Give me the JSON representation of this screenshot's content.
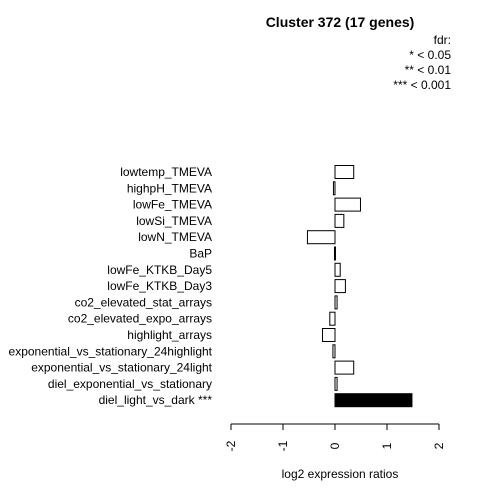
{
  "chart_data": {
    "type": "bar",
    "orientation": "horizontal",
    "title": "Cluster 372 (17 genes)",
    "xlabel": "log2 expression ratios",
    "ylabel": "",
    "xlim": [
      -2,
      2
    ],
    "ticks": [
      "-2",
      "-1",
      "0",
      "1",
      "2"
    ],
    "tick_values": [
      -2,
      -1,
      0,
      1,
      2
    ],
    "legend": {
      "title": "fdr:",
      "entries": [
        "* < 0.05",
        "** < 0.01",
        "*** < 0.001"
      ]
    },
    "categories": [
      "lowtemp_TMEVA",
      "highpH_TMEVA",
      "lowFe_TMEVA",
      "lowSi_TMEVA",
      "lowN_TMEVA",
      "BaP",
      "lowFe_KTKB_Day5",
      "lowFe_KTKB_Day3",
      "co2_elevated_stat_arrays",
      "co2_elevated_expo_arrays",
      "highlight_arrays",
      "exponential_vs_stationary_24highlight",
      "exponential_vs_stationary_24light",
      "diel_exponential_vs_stationary",
      "diel_light_vs_dark ***"
    ],
    "values": [
      0.36,
      -0.03,
      0.49,
      0.17,
      -0.53,
      -0.01,
      0.1,
      0.2,
      0.04,
      -0.1,
      -0.24,
      -0.04,
      0.36,
      0.04,
      1.48
    ],
    "highlight": [
      false,
      false,
      false,
      false,
      false,
      false,
      false,
      false,
      false,
      false,
      false,
      false,
      false,
      false,
      true
    ],
    "colors": {
      "bar": "#ffffff",
      "highlight": "#000000",
      "stroke": "#000000"
    }
  }
}
